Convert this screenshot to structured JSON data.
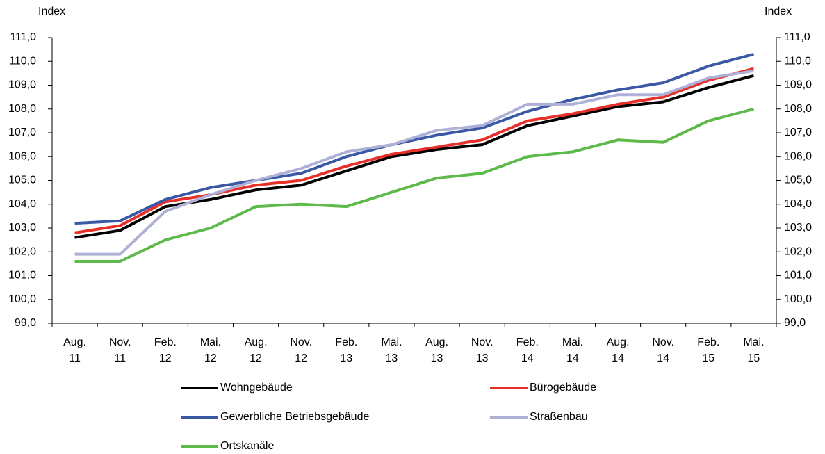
{
  "chart_data": {
    "type": "line",
    "y_label": "Index",
    "y2_label": "Index",
    "categories": [
      "Aug. 11",
      "Nov. 11",
      "Feb. 12",
      "Mai. 12",
      "Aug. 12",
      "Nov. 12",
      "Feb. 13",
      "Mai. 13",
      "Aug. 13",
      "Nov. 13",
      "Feb. 14",
      "Mai. 14",
      "Aug. 14",
      "Nov. 14",
      "Feb. 15",
      "Mai. 15"
    ],
    "series": [
      {
        "name": "Wohngebäude",
        "color": "#000000",
        "values": [
          102.6,
          102.9,
          103.9,
          104.2,
          104.6,
          104.8,
          105.4,
          106.0,
          106.3,
          106.5,
          107.3,
          107.7,
          108.1,
          108.3,
          108.9,
          109.4
        ]
      },
      {
        "name": "Bürogebäude",
        "color": "#e8302a",
        "values": [
          102.8,
          103.1,
          104.1,
          104.4,
          104.8,
          105.0,
          105.6,
          106.1,
          106.4,
          106.7,
          107.5,
          107.8,
          108.2,
          108.5,
          109.2,
          109.7
        ]
      },
      {
        "name": "Gewerbliche Betriebsgebäude",
        "color": "#3a58a4",
        "values": [
          103.2,
          103.3,
          104.2,
          104.7,
          105.0,
          105.3,
          106.0,
          106.5,
          106.9,
          107.2,
          107.9,
          108.4,
          108.8,
          109.1,
          109.8,
          110.3
        ]
      },
      {
        "name": "Straßenbau",
        "color": "#aeb0d8",
        "values": [
          101.9,
          101.9,
          103.7,
          104.4,
          105.0,
          105.5,
          106.2,
          106.5,
          107.1,
          107.3,
          108.2,
          108.2,
          108.6,
          108.6,
          109.3,
          109.6
        ]
      },
      {
        "name": "Ortskanäle",
        "color": "#5cb94a",
        "values": [
          101.6,
          101.6,
          102.5,
          103.0,
          103.9,
          104.0,
          103.9,
          104.5,
          105.1,
          105.3,
          106.0,
          106.2,
          106.7,
          106.6,
          107.5,
          108.0
        ]
      }
    ],
    "ylim": [
      99,
      111
    ],
    "yticks": [
      {
        "value": 99,
        "label": "99,0"
      },
      {
        "value": 100,
        "label": "100,0"
      },
      {
        "value": 101,
        "label": "101,0"
      },
      {
        "value": 102,
        "label": "102,0"
      },
      {
        "value": 103,
        "label": "103,0"
      },
      {
        "value": 104,
        "label": "104,0"
      },
      {
        "value": 105,
        "label": "105,0"
      },
      {
        "value": 106,
        "label": "106,0"
      },
      {
        "value": 107,
        "label": "107,0"
      },
      {
        "value": 108,
        "label": "108,0"
      },
      {
        "value": 109,
        "label": "109,0"
      },
      {
        "value": 110,
        "label": "110,0"
      },
      {
        "value": 111,
        "label": "111,0"
      }
    ],
    "y2lim": [
      99,
      111
    ],
    "y2ticks": [
      {
        "value": 99,
        "label": "99,0"
      },
      {
        "value": 100,
        "label": "100,0"
      },
      {
        "value": 101,
        "label": "101,0"
      },
      {
        "value": 102,
        "label": "102,0"
      },
      {
        "value": 103,
        "label": "103,0"
      },
      {
        "value": 104,
        "label": "104,0"
      },
      {
        "value": 105,
        "label": "105,0"
      },
      {
        "value": 106,
        "label": "106,0"
      },
      {
        "value": 107,
        "label": "107,0"
      },
      {
        "value": 108,
        "label": "108,0"
      },
      {
        "value": 109,
        "label": "109,0"
      },
      {
        "value": 110,
        "label": "110,0"
      },
      {
        "value": 111,
        "label": "111,0"
      }
    ],
    "grid": false,
    "legend": "bottom"
  }
}
